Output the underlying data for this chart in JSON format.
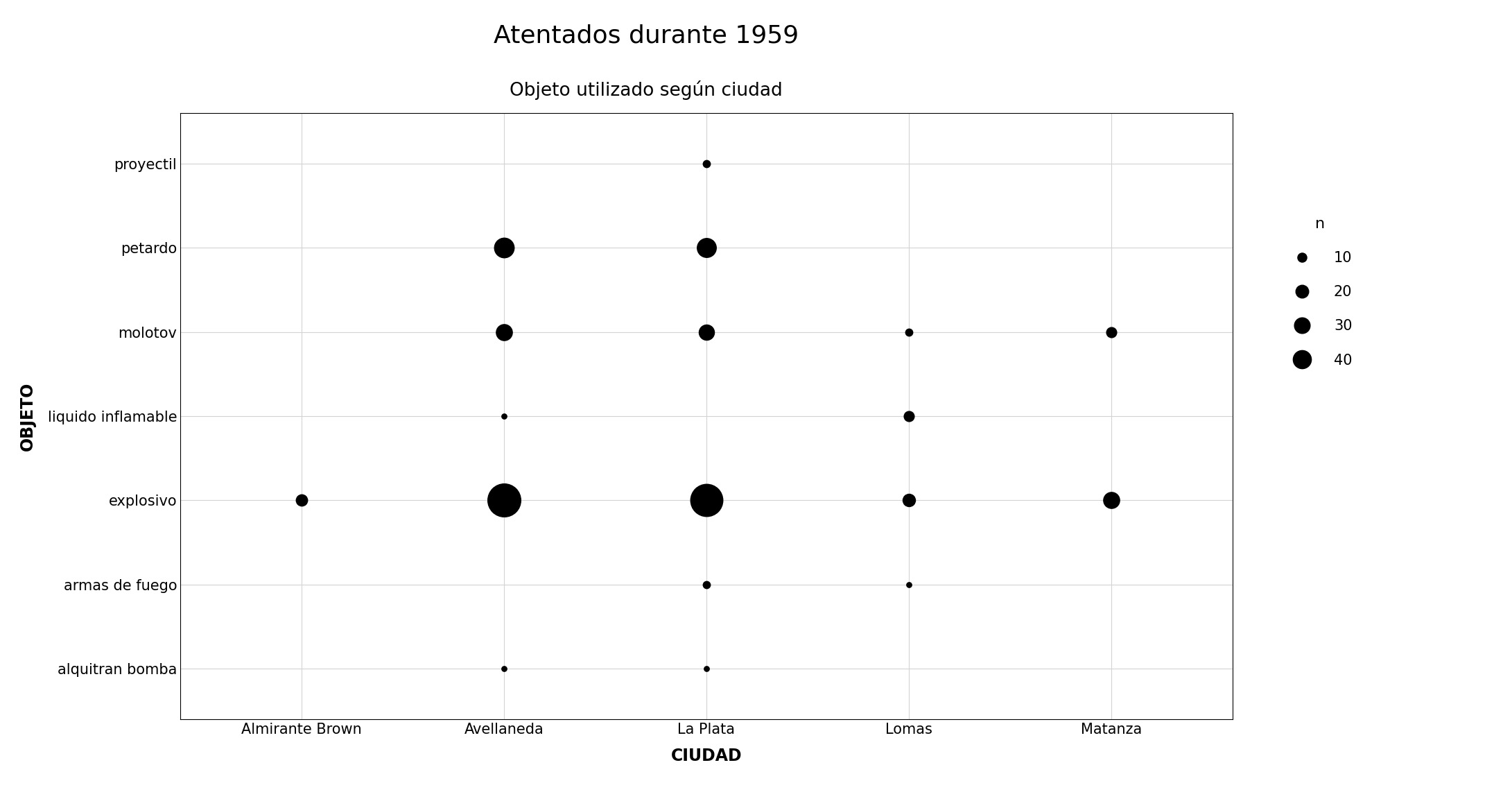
{
  "title": "Atentados durante 1959",
  "subtitle": "Objeto utilizado según ciudad",
  "xlabel": "CIUDAD",
  "ylabel": "OBJETO",
  "cities": [
    "Almirante Brown",
    "Avellaneda",
    "La Plata",
    "Lomas",
    "Matanza"
  ],
  "objects": [
    "alquitran bomba",
    "armas de fuego",
    "explosivo",
    "liquido inflamable",
    "molotov",
    "petardo",
    "proyectil"
  ],
  "data": [
    {
      "ciudad": "Almirante Brown",
      "objeto": "explosivo",
      "n": 5
    },
    {
      "ciudad": "Avellaneda",
      "objeto": "alquitran bomba",
      "n": 1
    },
    {
      "ciudad": "Avellaneda",
      "objeto": "explosivo",
      "n": 42
    },
    {
      "ciudad": "Avellaneda",
      "objeto": "liquido inflamable",
      "n": 1
    },
    {
      "ciudad": "Avellaneda",
      "objeto": "molotov",
      "n": 10
    },
    {
      "ciudad": "Avellaneda",
      "objeto": "petardo",
      "n": 15
    },
    {
      "ciudad": "La Plata",
      "objeto": "alquitran bomba",
      "n": 1
    },
    {
      "ciudad": "La Plata",
      "objeto": "armas de fuego",
      "n": 2
    },
    {
      "ciudad": "La Plata",
      "objeto": "explosivo",
      "n": 40
    },
    {
      "ciudad": "La Plata",
      "objeto": "molotov",
      "n": 9
    },
    {
      "ciudad": "La Plata",
      "objeto": "petardo",
      "n": 14
    },
    {
      "ciudad": "La Plata",
      "objeto": "proyectil",
      "n": 2
    },
    {
      "ciudad": "Lomas",
      "objeto": "armas de fuego",
      "n": 1
    },
    {
      "ciudad": "Lomas",
      "objeto": "explosivo",
      "n": 6
    },
    {
      "ciudad": "Lomas",
      "objeto": "liquido inflamable",
      "n": 4
    },
    {
      "ciudad": "Lomas",
      "objeto": "molotov",
      "n": 2
    },
    {
      "ciudad": "Matanza",
      "objeto": "explosivo",
      "n": 10
    },
    {
      "ciudad": "Matanza",
      "objeto": "molotov",
      "n": 4
    }
  ],
  "legend_values": [
    10,
    20,
    30,
    40
  ],
  "size_scale": 28.0,
  "dot_color": "#000000",
  "background_color": "#ffffff",
  "grid_color": "#d3d3d3",
  "title_fontsize": 26,
  "subtitle_fontsize": 19,
  "label_fontsize": 17,
  "tick_fontsize": 15,
  "legend_fontsize": 15,
  "legend_title_fontsize": 16
}
